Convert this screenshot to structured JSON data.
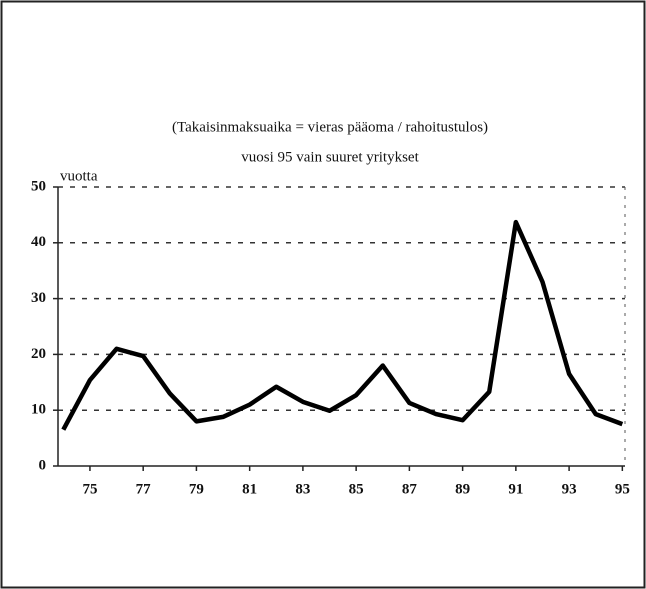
{
  "chart_data": {
    "type": "line",
    "title": "(Takaisinmaksuaika = vieras pääoma / rahoitustulos)",
    "subtitle": "vuosi 95 vain suuret yritykset",
    "y_label": "vuotta",
    "x": [
      74,
      75,
      76,
      77,
      78,
      79,
      80,
      81,
      82,
      83,
      84,
      85,
      86,
      87,
      88,
      89,
      90,
      91,
      92,
      93,
      94,
      95
    ],
    "series": [
      {
        "name": null,
        "color": "#000000",
        "values": [
          6.5,
          15.4,
          21,
          19.7,
          13,
          8,
          8.8,
          11,
          14.2,
          11.5,
          9.9,
          12.7,
          18,
          11.3,
          9.3,
          8.2,
          13.3,
          43.7,
          33,
          16.5,
          9.3,
          7.5
        ]
      }
    ],
    "xlim": [
      73.8,
      95.1
    ],
    "xticks": [
      75,
      77,
      79,
      81,
      83,
      85,
      87,
      89,
      91,
      93,
      95
    ],
    "ylim": [
      0,
      50
    ],
    "yticks": [
      0,
      10,
      20,
      30,
      40,
      50
    ],
    "grid": true
  }
}
